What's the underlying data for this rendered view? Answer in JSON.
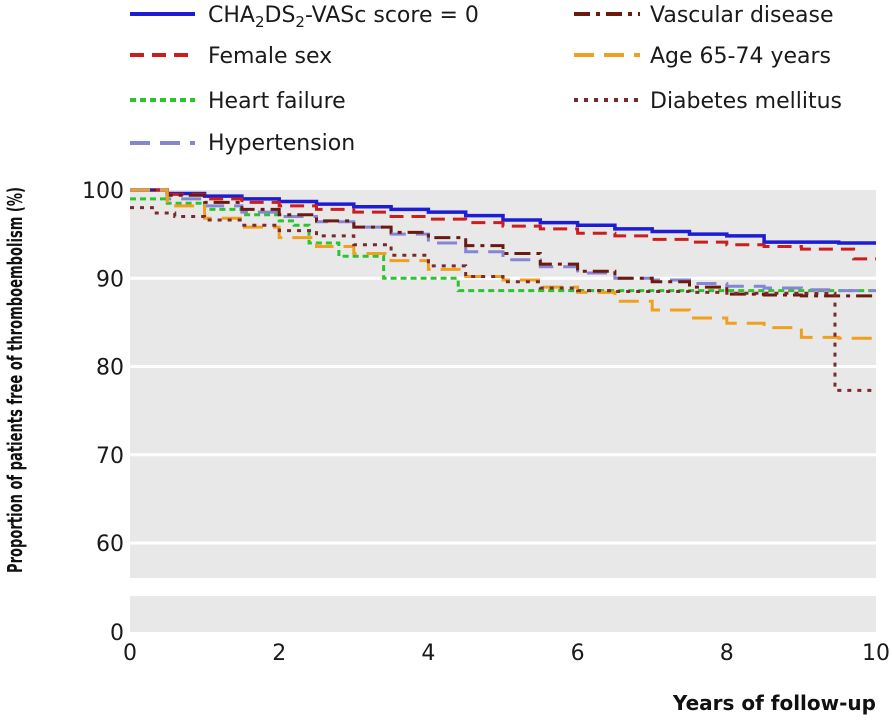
{
  "chart_data": {
    "type": "line",
    "subtype": "kaplan-meier step",
    "xlabel": "Years of follow-up",
    "ylabel": "Proportion of patients free of thromboembolism (%)",
    "xlim": [
      0,
      10
    ],
    "ylim": [
      0,
      100
    ],
    "y_axis_break": [
      60,
      0
    ],
    "x_ticks": [
      "0",
      "2",
      "4",
      "6",
      "8",
      "10"
    ],
    "y_ticks": [
      "0",
      "60",
      "70",
      "80",
      "90",
      "100"
    ],
    "legend_position": "top",
    "series": [
      {
        "name": "CHA₂DS₂-VASc score = 0",
        "label_parts": {
          "a": "CHA",
          "b": "2",
          "c": "DS",
          "d": "2",
          "e": "-VASc score = 0"
        },
        "color": "#1d1dd6",
        "dash": "solid",
        "x": [
          0,
          0.5,
          1,
          1.5,
          2,
          2.5,
          3,
          3.5,
          4,
          4.5,
          5,
          5.5,
          6,
          6.5,
          7,
          7.5,
          8,
          8.5,
          9,
          9.5,
          10
        ],
        "y": [
          100,
          99.6,
          99.3,
          99,
          98.7,
          98.4,
          98.1,
          97.8,
          97.5,
          97.1,
          96.6,
          96.3,
          96,
          95.6,
          95.3,
          95,
          94.8,
          94.1,
          94.1,
          94,
          94
        ]
      },
      {
        "name": "Female sex",
        "color": "#cc1d1d",
        "dash": "dashed",
        "x": [
          0,
          0.5,
          1,
          1.5,
          2,
          2.5,
          3,
          3.5,
          4,
          4.5,
          5,
          5.5,
          6,
          6.5,
          7,
          7.5,
          8,
          8.5,
          9,
          9.5,
          9.7,
          10
        ],
        "y": [
          100,
          99.5,
          99,
          98.6,
          98.2,
          97.8,
          97.5,
          97,
          96.7,
          96.3,
          95.9,
          95.6,
          95.1,
          94.8,
          94.4,
          94.1,
          93.8,
          93.6,
          93.3,
          93.3,
          92.2,
          92.2
        ]
      },
      {
        "name": "Heart failure",
        "color": "#2cc42c",
        "dash": "dotted-dash",
        "x": [
          0,
          0.5,
          1,
          1.5,
          2,
          2.2,
          2.4,
          2.7,
          2.8,
          3.3,
          3.4,
          4.3,
          4.4,
          5,
          6,
          7,
          8,
          9,
          10
        ],
        "y": [
          99,
          98.5,
          97.8,
          97.2,
          96.5,
          96,
          94,
          94,
          92.5,
          92.5,
          90,
          90,
          88.6,
          88.6,
          88.6,
          88.6,
          88.6,
          88.6,
          88.6
        ]
      },
      {
        "name": "Hypertension",
        "color": "#8585d6",
        "dash": "long-dashed",
        "x": [
          0,
          0.5,
          1,
          1.5,
          2,
          2.5,
          3,
          3.5,
          4,
          4.5,
          5,
          5.5,
          6,
          6.5,
          7,
          7.5,
          8,
          8.5,
          9,
          9.5,
          10
        ],
        "y": [
          100,
          99,
          98.2,
          97.5,
          97,
          96.4,
          95.8,
          95,
          94,
          93,
          92.1,
          91.3,
          90.6,
          90,
          89.8,
          89.4,
          89.1,
          88.9,
          88.7,
          88.6,
          88.6
        ]
      },
      {
        "name": "Vascular disease",
        "color": "#6b1a10",
        "dash": "dash-dot",
        "x": [
          0,
          0.5,
          1,
          1.5,
          2,
          2.5,
          3,
          3.5,
          4,
          4.5,
          5,
          5.5,
          6,
          6.5,
          7,
          7.5,
          8,
          8.5,
          9,
          9.5,
          10
        ],
        "y": [
          100,
          99.4,
          98.6,
          97.8,
          97.2,
          96.5,
          95.8,
          95.2,
          94.6,
          93.7,
          92.8,
          91.6,
          90.8,
          90,
          89.6,
          89,
          88.2,
          88.1,
          88,
          88,
          88
        ]
      },
      {
        "name": "Age 65-74 years",
        "color": "#f0a01e",
        "dash": "long-dashed",
        "x": [
          0,
          0.5,
          1,
          1.5,
          2,
          2.5,
          3,
          3.5,
          4,
          4.5,
          5,
          5.5,
          6,
          6.5,
          7,
          7.5,
          8,
          8.5,
          9,
          9.5,
          10
        ],
        "y": [
          100,
          98.2,
          96.8,
          95.8,
          94.6,
          93.6,
          92.8,
          92,
          91,
          90.2,
          89.8,
          89,
          88.4,
          87.4,
          86.4,
          85.5,
          84.9,
          84.4,
          83.3,
          83.2,
          83.2
        ]
      },
      {
        "name": "Diabetes mellitus",
        "color": "#7a2a2a",
        "dash": "dotted",
        "x": [
          0,
          0.3,
          0.6,
          1,
          1.5,
          2,
          2.5,
          3,
          3.5,
          4,
          4.5,
          5,
          5.5,
          6,
          6.5,
          7,
          7.5,
          8,
          8.5,
          9,
          9.4,
          9.45,
          10
        ],
        "y": [
          98,
          97.4,
          97,
          96.6,
          96,
          95.4,
          94.8,
          93.8,
          92.6,
          91.4,
          90.2,
          89.6,
          88.9,
          88.6,
          88.5,
          88.5,
          88.4,
          88.3,
          88.3,
          88.3,
          88.3,
          77.3,
          77.3
        ]
      }
    ]
  }
}
